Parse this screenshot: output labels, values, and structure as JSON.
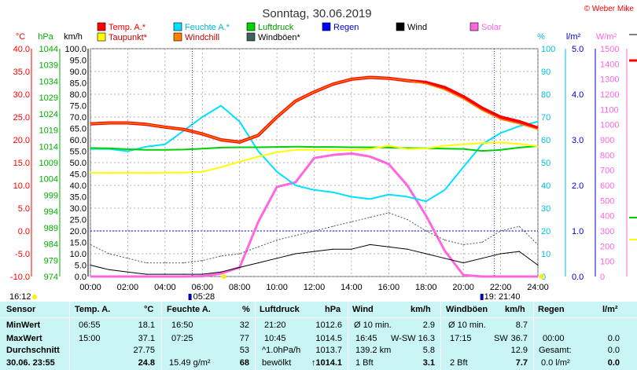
{
  "title": "Sonntag, 30.06.2019",
  "copyright": "© Weber Mike",
  "colors": {
    "temp": "#ff0000",
    "dew": "#ffff00",
    "humidity": "#00e0ff",
    "windchill": "#ff8000",
    "pressure": "#00d000",
    "rain": "#0000ff",
    "wind": "#000000",
    "gust": "#406060",
    "solar": "#ff66e0",
    "panel": "#c9f5f5"
  },
  "axes": {
    "temp": {
      "unit": "°C",
      "ticks": [
        "40.0",
        "35.0",
        "30.0",
        "25.0",
        "20.0",
        "15.0",
        "10.0",
        "5.0",
        "0.0",
        "-5.0",
        "-10.0"
      ]
    },
    "pressure": {
      "unit": "hPa",
      "ticks": [
        "1044",
        "1039",
        "1034",
        "1029",
        "1024",
        "1019",
        "1014",
        "1009",
        "1004",
        "999",
        "994",
        "989",
        "984",
        "979",
        "974"
      ]
    },
    "wind": {
      "unit": "km/h",
      "ticks": [
        "100.0",
        "95.0",
        "90.0",
        "85.0",
        "80.0",
        "75.0",
        "70.0",
        "65.0",
        "60.0",
        "55.0",
        "50.0",
        "45.0",
        "40.0",
        "35.0",
        "30.0",
        "25.0",
        "20.0",
        "15.0",
        "10.0",
        "5.0",
        "0.0"
      ]
    },
    "humidity": {
      "unit": "%",
      "ticks": [
        "100",
        "90",
        "80",
        "70",
        "60",
        "50",
        "40",
        "30",
        "20",
        "10",
        "0"
      ]
    },
    "rain": {
      "unit": "l/m²",
      "ticks": [
        "5.0",
        "4.0",
        "3.0",
        "2.0",
        "1.0",
        "0.0"
      ]
    },
    "solar": {
      "unit": "W/m²",
      "ticks": [
        "1500",
        "1400",
        "1300",
        "1200",
        "1100",
        "1000",
        "900",
        "800",
        "700",
        "600",
        "500",
        "400",
        "300",
        "200",
        "100",
        "0"
      ]
    },
    "x": [
      "00:00",
      "02:00",
      "04:00",
      "06:00",
      "08:00",
      "10:00",
      "12:00",
      "14:00",
      "16:00",
      "18:00",
      "20:00",
      "22:00",
      "24:00"
    ]
  },
  "legend": [
    {
      "label": "Temp. A.*",
      "key": "temp"
    },
    {
      "label": "Feuchte A.*",
      "key": "humidity"
    },
    {
      "label": "Luftdruck",
      "key": "pressure"
    },
    {
      "label": "Regen",
      "key": "rain"
    },
    {
      "label": "Wind",
      "key": "wind"
    },
    {
      "label": "Solar",
      "key": "solar"
    },
    {
      "label": "Taupunkt*",
      "key": "dew"
    },
    {
      "label": "Windchill",
      "key": "windchill"
    },
    {
      "label": "Windböen*",
      "key": "gust"
    }
  ],
  "sun": {
    "sunrise": "05:28",
    "sunset": "21:40",
    "now": "16:12"
  },
  "chart_data": {
    "type": "line",
    "title": "Sonntag, 30.06.2019",
    "x": [
      0,
      1,
      2,
      3,
      4,
      5,
      6,
      7,
      8,
      9,
      10,
      11,
      12,
      13,
      14,
      15,
      16,
      17,
      18,
      19,
      20,
      21,
      22,
      23,
      24
    ],
    "xlim": [
      0,
      24
    ],
    "series": [
      {
        "name": "Temp. A.*",
        "axis": "temp",
        "values": [
          23.5,
          23.7,
          23.7,
          23.4,
          22.8,
          22.3,
          21.3,
          20.0,
          19.5,
          21.0,
          25.0,
          28.5,
          30.5,
          32.2,
          33.3,
          33.7,
          33.5,
          33.0,
          32.6,
          31.5,
          29.5,
          27.0,
          25.0,
          24.0,
          22.6
        ]
      },
      {
        "name": "Windchill",
        "axis": "temp",
        "values": [
          23.5,
          23.7,
          23.7,
          23.4,
          22.8,
          22.3,
          21.3,
          20.0,
          19.5,
          21.0,
          25.0,
          28.5,
          30.5,
          32.2,
          33.3,
          33.7,
          33.5,
          33.0,
          32.3,
          31.0,
          29.0,
          26.5,
          24.5,
          23.5,
          22.3
        ]
      },
      {
        "name": "Feuchte A.*",
        "axis": "humidity",
        "values": [
          56,
          56,
          55,
          57,
          58,
          64,
          70,
          75,
          68,
          55,
          46,
          40,
          38,
          37,
          35,
          34,
          36,
          35,
          33,
          38,
          48,
          58,
          63,
          66,
          68
        ]
      },
      {
        "name": "Taupunkt*",
        "axis": "temp",
        "values": [
          12.8,
          12.7,
          12.8,
          12.7,
          12.8,
          12.8,
          13.0,
          14.0,
          15.2,
          16.3,
          17.3,
          17.8,
          17.8,
          17.7,
          17.7,
          18.0,
          18.7,
          18.0,
          18.1,
          18.7,
          19.0,
          19.3,
          19.4,
          19.1,
          18.6
        ]
      },
      {
        "name": "Luftdruck",
        "axis": "pressure",
        "values": [
          1013.5,
          1013.4,
          1013.1,
          1012.9,
          1012.9,
          1013.0,
          1013.3,
          1013.6,
          1013.7,
          1013.7,
          1013.8,
          1013.9,
          1013.8,
          1013.8,
          1013.7,
          1013.7,
          1013.6,
          1013.5,
          1013.4,
          1013.3,
          1013.2,
          1012.6,
          1012.9,
          1013.6,
          1014.1
        ]
      },
      {
        "name": "Solar",
        "axis": "solar",
        "values": [
          0,
          0,
          0,
          0,
          0,
          0,
          2,
          20,
          60,
          360,
          590,
          620,
          780,
          800,
          810,
          790,
          740,
          600,
          400,
          170,
          10,
          0,
          0,
          0,
          0
        ]
      },
      {
        "name": "Windböen*",
        "axis": "wind",
        "values": [
          14,
          10,
          8,
          6,
          6,
          6,
          7,
          9,
          10,
          13,
          16,
          18,
          20,
          22,
          24,
          26,
          28,
          25,
          20,
          16,
          14,
          15,
          20,
          22,
          14
        ]
      },
      {
        "name": "Wind",
        "axis": "wind",
        "values": [
          5,
          3,
          2,
          1,
          1,
          1,
          1,
          2,
          4,
          6,
          8,
          10,
          11,
          12,
          12,
          14,
          13,
          12,
          10,
          8,
          6,
          8,
          10,
          11,
          5
        ]
      }
    ]
  },
  "stats": {
    "headers": {
      "sensor": "Sensor",
      "temp": "Temp. A.",
      "temp_unit": "°C",
      "hum": "Feuchte A.",
      "hum_unit": "%",
      "press": "Luftdruck",
      "press_unit": "hPa",
      "wind": "Wind",
      "wind_unit": "km/h",
      "gust": "Windböen",
      "gust_unit": "km/h",
      "rain": "Regen",
      "rain_unit": "l/m²"
    },
    "rows": {
      "min": {
        "label": "MinWert",
        "temp_time": "06:55",
        "temp": "18.1",
        "hum_time": "16:50",
        "hum": "32",
        "press_time": "21:20",
        "press": "1012.6",
        "wind_label": "Ø 10 min.",
        "wind": "2.9",
        "gust_label": "Ø 10 min.",
        "gust": "8.7"
      },
      "max": {
        "label": "MaxWert",
        "temp_time": "15:00",
        "temp": "37.1",
        "hum_time": "07:25",
        "hum": "77",
        "press_time": "10:45",
        "press": "1014.5",
        "wind_time": "16:45",
        "wind_dir": "W-SW",
        "wind": "16.3",
        "gust_time": "17:15",
        "gust_dir": "SW",
        "gust": "36.7",
        "rain_time": "00:00",
        "rain": "0.0"
      },
      "avg": {
        "label": "Durchschnitt",
        "temp": "27.75",
        "hum": "53",
        "press_label": "^1.0hPa/h",
        "press": "1013.7",
        "wind_label": "139.2 km",
        "wind": "5.8",
        "gust": "12.9",
        "rain_label": "Gesamt:",
        "rain": "0.0"
      },
      "now": {
        "label": "30.06. 23:55",
        "temp": "24.8",
        "hum_label": "15.49 g/m²",
        "hum": "68",
        "press_label": "bewölkt",
        "press": "↑1014.1",
        "wind_label": "1 Bft",
        "wind": "3.1",
        "gust_label": "2 Bft",
        "gust": "7.7",
        "rain_label": "0.0 l/m²",
        "rain": "0.0"
      }
    }
  }
}
